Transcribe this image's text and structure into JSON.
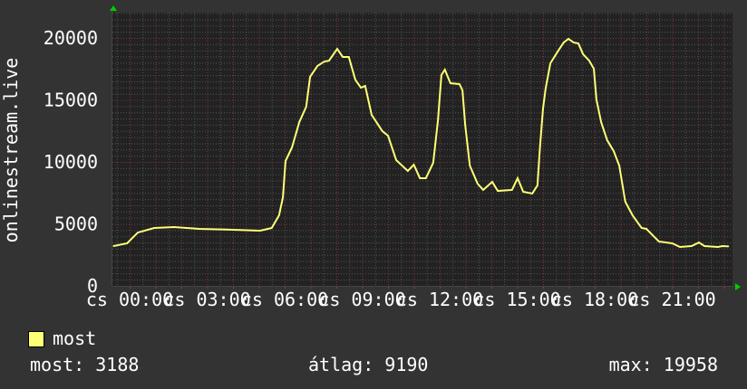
{
  "chart_data": {
    "type": "line",
    "ylabel": "onlinestream.live",
    "ylim": [
      0,
      20000
    ],
    "yticks": [
      "0",
      "5000",
      "10000",
      "15000",
      "20000"
    ],
    "xlim": [
      "23:20",
      "23:20"
    ],
    "xticks": [
      "cs 00:00",
      "cs 03:00",
      "cs 06:00",
      "cs 09:00",
      "cs 12:00",
      "cs 15:00",
      "cs 18:00",
      "cs 21:00"
    ],
    "grid": true,
    "legend_placement": "bottom-left",
    "colors": {
      "background": "#333333",
      "plot": "#222222",
      "line": "#ffff77",
      "grid_minor": "#555555",
      "grid_major": "#803838",
      "arrow": "#00cc00"
    },
    "series": [
      {
        "name": "most",
        "x": [
          "23:22",
          "23:54",
          "00:19",
          "00:57",
          "01:43",
          "02:42",
          "04:00",
          "05:03",
          "05:30",
          "05:47",
          "05:56",
          "06:02",
          "06:17",
          "06:34",
          "06:50",
          "06:59",
          "07:16",
          "07:32",
          "07:43",
          "08:02",
          "08:15",
          "08:29",
          "08:44",
          "08:57",
          "09:07",
          "09:22",
          "09:47",
          "10:00",
          "10:19",
          "10:46",
          "11:00",
          "11:14",
          "11:28",
          "11:45",
          "11:56",
          "12:04",
          "12:12",
          "12:25",
          "12:46",
          "12:53",
          "12:59",
          "13:10",
          "13:28",
          "13:41",
          "14:02",
          "14:15",
          "14:48",
          "15:01",
          "15:14",
          "15:35",
          "15:47",
          "15:53",
          "16:00",
          "16:06",
          "16:17",
          "16:34",
          "16:48",
          "16:59",
          "17:11",
          "17:22",
          "17:33",
          "17:47",
          "17:58",
          "18:04",
          "18:15",
          "18:29",
          "18:44",
          "18:57",
          "19:11",
          "19:28",
          "19:49",
          "20:00",
          "20:29",
          "21:00",
          "21:18",
          "21:45",
          "22:02",
          "22:15",
          "22:46",
          "22:57",
          "23:11"
        ],
        "values": [
          3210,
          3430,
          4300,
          4670,
          4740,
          4600,
          4530,
          4450,
          4670,
          5690,
          7150,
          10070,
          11170,
          13210,
          14450,
          16860,
          17740,
          18100,
          18170,
          19120,
          18470,
          18470,
          16640,
          15990,
          16130,
          13800,
          12480,
          12120,
          10150,
          9270,
          9780,
          8690,
          8690,
          9930,
          13360,
          17010,
          17450,
          16350,
          16280,
          15770,
          13070,
          9710,
          8250,
          7740,
          8390,
          7660,
          7740,
          8690,
          7590,
          7450,
          8100,
          11240,
          14310,
          15910,
          17960,
          18900,
          19640,
          19930,
          19640,
          19560,
          18690,
          18180,
          17520,
          15040,
          13210,
          11750,
          10880,
          9710,
          6790,
          5690,
          4670,
          4600,
          3580,
          3430,
          3140,
          3210,
          3500,
          3210,
          3140,
          3210,
          3188
        ]
      }
    ]
  },
  "legend": {
    "series_label": "most",
    "current_label": "most: 3188",
    "average_label": "átlag: 9190",
    "max_label": "max: 19958"
  }
}
